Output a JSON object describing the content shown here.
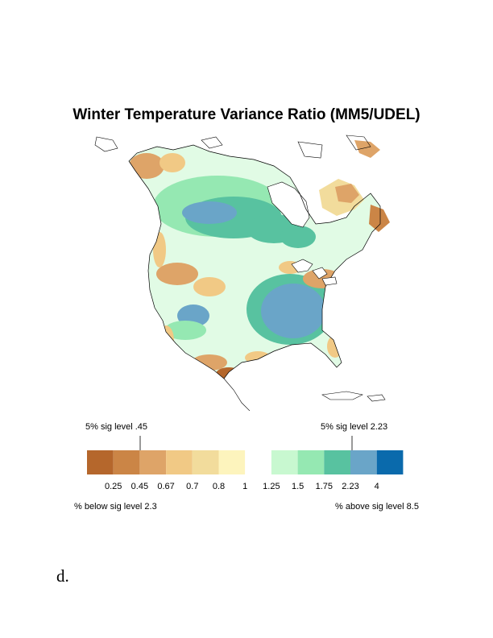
{
  "title": "Winter Temperature Variance Ratio (MM5/UDEL)",
  "panel_letter": "d.",
  "legend": {
    "sig_low_label": "5% sig level .45",
    "sig_high_label": "5% sig level 2.23",
    "below_label": "% below sig level 2.3",
    "above_label": "% above sig level 8.5",
    "ticks": [
      "0.25",
      "0.45",
      "0.67",
      "0.7",
      "0.8",
      "1",
      "1.25",
      "1.5",
      "1.75",
      "2.23",
      "4"
    ],
    "colors": [
      "#b5672c",
      "#cb8546",
      "#dea468",
      "#f1c985",
      "#f2dc9c",
      "#fdf4bd",
      "#ffffff",
      "#c8f8d0",
      "#95e8b2",
      "#58c2a0",
      "#6aa5c8",
      "#0a6aac"
    ]
  },
  "map_colors": {
    "land_white": "#ffffff",
    "green_light": "#c8f8d0",
    "green_mid": "#95e8b2",
    "teal": "#58c2a0",
    "blue": "#6aa5c8",
    "tan": "#f1c985",
    "orange": "#dea468",
    "brown": "#b5672c"
  }
}
